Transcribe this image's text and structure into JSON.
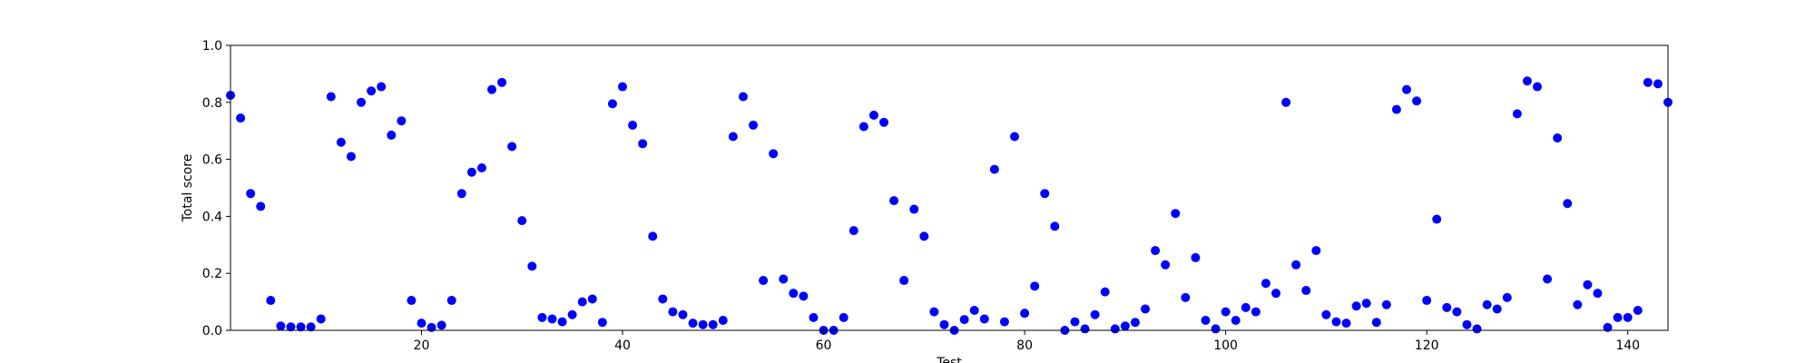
{
  "chart_data": {
    "type": "scatter",
    "title": "",
    "xlabel": "Test",
    "ylabel": "Total score",
    "xlim": [
      1,
      144
    ],
    "ylim": [
      0.0,
      1.0
    ],
    "xticks": [
      20,
      40,
      60,
      80,
      100,
      120,
      140
    ],
    "xtick_labels": [
      "20",
      "40",
      "60",
      "80",
      "100",
      "120",
      "140"
    ],
    "yticks": [
      0.0,
      0.2,
      0.4,
      0.6,
      0.8,
      1.0
    ],
    "ytick_labels": [
      "0.0",
      "0.2",
      "0.4",
      "0.6",
      "0.8",
      "1.0"
    ],
    "grid": false,
    "marker_color": "#0000ff",
    "series": [
      {
        "x": [
          1,
          2,
          3,
          4,
          5,
          6,
          7,
          8,
          9,
          10,
          11,
          12,
          13,
          14,
          15,
          16,
          17,
          18,
          19,
          20,
          21,
          22,
          23,
          24,
          25,
          26,
          27,
          28,
          29,
          30,
          31,
          32,
          33,
          34,
          35,
          36,
          37,
          38,
          39,
          40,
          41,
          42,
          43,
          44,
          45,
          46,
          47,
          48,
          49,
          50,
          51,
          52,
          53,
          54,
          55,
          56,
          57,
          58,
          59,
          60,
          61,
          62,
          63,
          64,
          65,
          66,
          67,
          68,
          69,
          70,
          71,
          72,
          73,
          74,
          75,
          76,
          77,
          78,
          79,
          80,
          81,
          82,
          83,
          84,
          85,
          86,
          87,
          88,
          89,
          90,
          91,
          92,
          93,
          94,
          95,
          96,
          97,
          98,
          99,
          100,
          101,
          102,
          103,
          104,
          105,
          106,
          107,
          108,
          109,
          110,
          111,
          112,
          113,
          114,
          115,
          116,
          117,
          118,
          119,
          120,
          121,
          122,
          123,
          124,
          125,
          126,
          127,
          128,
          129,
          130,
          131,
          132,
          133,
          134,
          135,
          136,
          137,
          138,
          139,
          140,
          141,
          142,
          143,
          144
        ],
        "y": [
          0.825,
          0.745,
          0.48,
          0.435,
          0.105,
          0.015,
          0.012,
          0.012,
          0.012,
          0.04,
          0.82,
          0.66,
          0.61,
          0.8,
          0.84,
          0.855,
          0.685,
          0.735,
          0.105,
          0.025,
          0.01,
          0.018,
          0.105,
          0.48,
          0.555,
          0.57,
          0.845,
          0.87,
          0.645,
          0.385,
          0.225,
          0.045,
          0.04,
          0.03,
          0.055,
          0.1,
          0.11,
          0.028,
          0.795,
          0.855,
          0.72,
          0.655,
          0.33,
          0.11,
          0.065,
          0.055,
          0.025,
          0.02,
          0.02,
          0.035,
          0.68,
          0.82,
          0.72,
          0.175,
          0.62,
          0.18,
          0.13,
          0.12,
          0.045,
          0.0,
          0.0,
          0.045,
          0.35,
          0.715,
          0.755,
          0.73,
          0.455,
          0.175,
          0.425,
          0.33,
          0.065,
          0.02,
          0.0,
          0.038,
          0.07,
          0.04,
          0.565,
          0.03,
          0.68,
          0.06,
          0.155,
          0.48,
          0.365,
          0.0,
          0.03,
          0.005,
          0.055,
          0.135,
          0.005,
          0.015,
          0.028,
          0.075,
          0.28,
          0.23,
          0.41,
          0.115,
          0.255,
          0.035,
          0.005,
          0.065,
          0.035,
          0.08,
          0.065,
          0.165,
          0.13,
          0.8,
          0.23,
          0.14,
          0.28,
          0.055,
          0.03,
          0.025,
          0.085,
          0.095,
          0.028,
          0.09,
          0.775,
          0.845,
          0.805,
          0.105,
          0.39,
          0.08,
          0.065,
          0.02,
          0.005,
          0.09,
          0.075,
          0.115,
          0.76,
          0.875,
          0.855,
          0.18,
          0.675,
          0.445,
          0.09,
          0.16,
          0.13,
          0.01,
          0.045,
          0.045,
          0.07,
          0.87,
          0.865,
          0.8
        ]
      }
    ]
  }
}
